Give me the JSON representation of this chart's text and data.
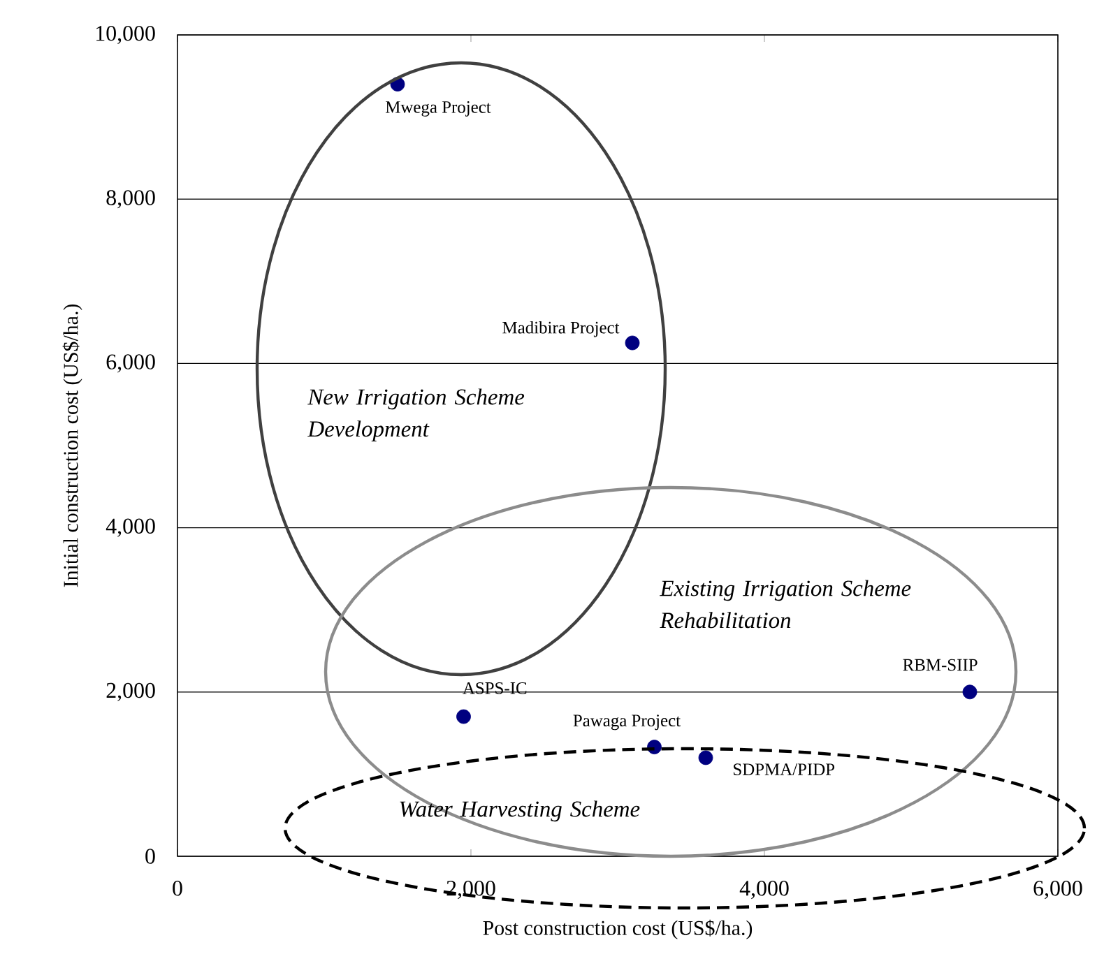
{
  "chart_data": {
    "type": "scatter",
    "xlabel": "Post construction cost (US$/ha.)",
    "ylabel": "Initial construction cost (US$/ha.)",
    "x": [
      1500,
      3100,
      1950,
      3250,
      3600,
      5400
    ],
    "values": [
      9400,
      6250,
      1700,
      1330,
      1200,
      2000
    ],
    "color": "#000080",
    "marker": "circle",
    "grid": "y",
    "xlim": [
      0,
      6000
    ],
    "ylim": [
      0,
      10000
    ],
    "xticks": [
      0,
      {
        "value": 2000,
        "label": "2,000"
      },
      {
        "value": 4000,
        "label": "4,000"
      },
      {
        "value": 6000,
        "label": "6,000"
      }
    ],
    "yticks": [
      0,
      {
        "value": 2000,
        "label": "2,000"
      },
      {
        "value": 4000,
        "label": "4,000"
      },
      {
        "value": 6000,
        "label": "6,000"
      },
      {
        "value": 8000,
        "label": "8,000"
      },
      {
        "value": 10000,
        "label": "10,000"
      }
    ],
    "annotations": [
      {
        "text": "Mwega Project",
        "x": 1500,
        "y": 9400
      },
      {
        "text": "Madibira Project",
        "x": 3100,
        "y": 6250
      },
      {
        "text": "ASPS-IC",
        "x": 1950,
        "y": 1700
      },
      {
        "text": "Pawaga Project",
        "x": 3250,
        "y": 1330
      },
      {
        "text": "SDPMA/PIDP",
        "x": 3600,
        "y": 1200
      },
      {
        "text": "RBM-SIIP",
        "x": 5400,
        "y": 2000
      },
      "New Irrigation Scheme Development",
      "Existing Irrigation Scheme Rehabilitation",
      "Water Harvesting Scheme"
    ]
  }
}
